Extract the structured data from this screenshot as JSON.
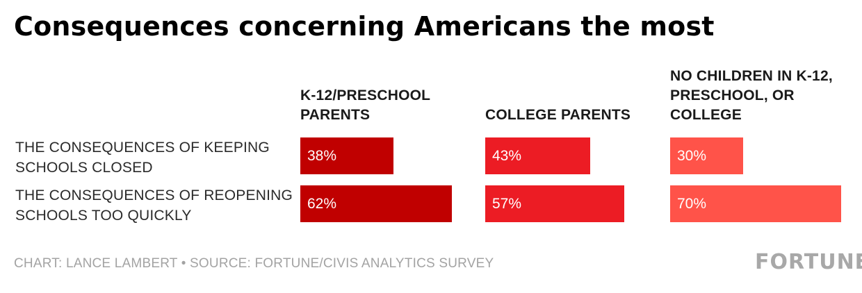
{
  "chart_data": {
    "type": "bar",
    "title": "Consequences concerning Americans the most",
    "categories": [
      "THE CONSEQUENCES OF KEEPING SCHOOLS CLOSED",
      "THE CONSEQUENCES OF REOPENING SCHOOLS TOO QUICKLY"
    ],
    "series": [
      {
        "name": "K-12/PRESCHOOL PARENTS",
        "values": [
          38,
          62
        ],
        "labels": [
          "38%",
          "62%"
        ],
        "color": "#c00000"
      },
      {
        "name": "COLLEGE PARENTS",
        "values": [
          43,
          57
        ],
        "labels": [
          "43%",
          "57%"
        ],
        "color": "#ec1c24"
      },
      {
        "name": "NO CHILDREN IN K-12, PRESCHOOL, OR COLLEGE",
        "values": [
          30,
          70
        ],
        "labels": [
          "30%",
          "70%"
        ],
        "color": "#ff5349"
      }
    ],
    "unit": "%",
    "xlim": [
      0,
      70
    ],
    "grid": false
  },
  "footer": {
    "credit": "CHART: LANCE LAMBERT • SOURCE: FORTUNE/CIVIS ANALYTICS SURVEY",
    "logo_text": "FORTUNE"
  }
}
